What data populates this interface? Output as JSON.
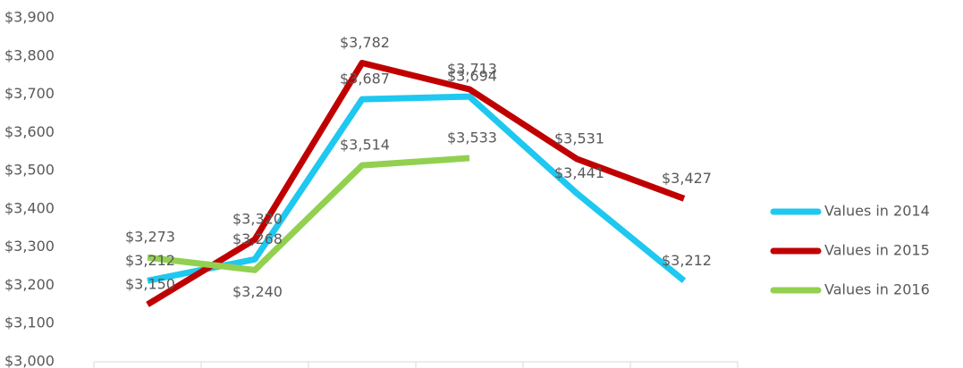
{
  "chart_data": {
    "type": "line",
    "categories": [
      null,
      null,
      null,
      null,
      null,
      null
    ],
    "series": [
      {
        "name": "Values in 2014",
        "color": "#1ec8f0",
        "values": [
          3212,
          3268,
          3687,
          3694,
          3441,
          3212
        ],
        "value_labels": [
          "$3,212",
          "$3,268",
          "$3,687",
          "$3,694",
          "$3,441",
          "$3,212"
        ]
      },
      {
        "name": "Values in 2015",
        "color": "#c00000",
        "values": [
          3150,
          3320,
          3782,
          3713,
          3531,
          3427
        ],
        "value_labels": [
          "$3,150",
          "$3,320",
          "$3,782",
          "$3,713",
          "$3,531",
          "$3,427"
        ]
      },
      {
        "name": "Values in 2016",
        "color": "#92d050",
        "values": [
          3273,
          3240,
          3514,
          3533,
          null,
          null
        ],
        "value_labels": [
          "$3,273",
          "$3,240",
          "$3,514",
          "$3,533",
          null,
          null
        ]
      }
    ],
    "ylim": [
      3000,
      3900
    ],
    "yticks": [
      {
        "value": 3000,
        "label": "$3,000"
      },
      {
        "value": 3100,
        "label": "$3,100"
      },
      {
        "value": 3200,
        "label": "$3,200"
      },
      {
        "value": 3300,
        "label": "$3,300"
      },
      {
        "value": 3400,
        "label": "$3,400"
      },
      {
        "value": 3500,
        "label": "$3,500"
      },
      {
        "value": 3600,
        "label": "$3,600"
      },
      {
        "value": 3700,
        "label": "$3,700"
      },
      {
        "value": 3800,
        "label": "$3,800"
      },
      {
        "value": 3900,
        "label": "$3,900"
      }
    ],
    "legend": "right"
  }
}
